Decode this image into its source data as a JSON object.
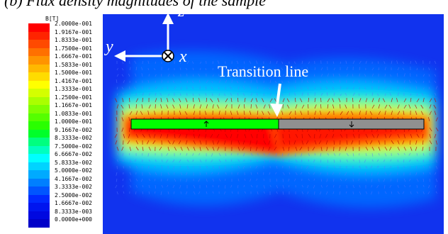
{
  "caption": "(b)      Flux density magnitudes of the sample",
  "legend": {
    "title": "B[T]",
    "labels": [
      "2.0000e-001",
      "1.9167e-001",
      "1.8333e-001",
      "1.7500e-001",
      "1.6667e-001",
      "1.5833e-001",
      "1.5000e-001",
      "1.4167e-001",
      "1.3333e-001",
      "1.2500e-001",
      "1.1667e-001",
      "1.0833e-001",
      "1.0000e-001",
      "9.1667e-002",
      "8.3333e-002",
      "7.5000e-002",
      "6.6667e-002",
      "5.8333e-002",
      "5.0000e-002",
      "4.1667e-002",
      "3.3333e-002",
      "2.5000e-002",
      "1.6667e-002",
      "8.3333e-003",
      "0.0000e+000"
    ],
    "colors": [
      "#ff0000",
      "#ff2400",
      "#ff4a00",
      "#ff7000",
      "#ff9400",
      "#ffb800",
      "#ffdc00",
      "#ffff00",
      "#d4ff00",
      "#aaff00",
      "#7fff00",
      "#55ff00",
      "#2aff00",
      "#00ff2a",
      "#00ff7f",
      "#00ffbf",
      "#00ffff",
      "#00d4ff",
      "#00aaff",
      "#007fff",
      "#0055ff",
      "#002aff",
      "#0015ef",
      "#0008e0",
      "#0000c8"
    ]
  },
  "axes": {
    "z": "z",
    "y": "y",
    "x": "x"
  },
  "annotation": "Transition line"
}
